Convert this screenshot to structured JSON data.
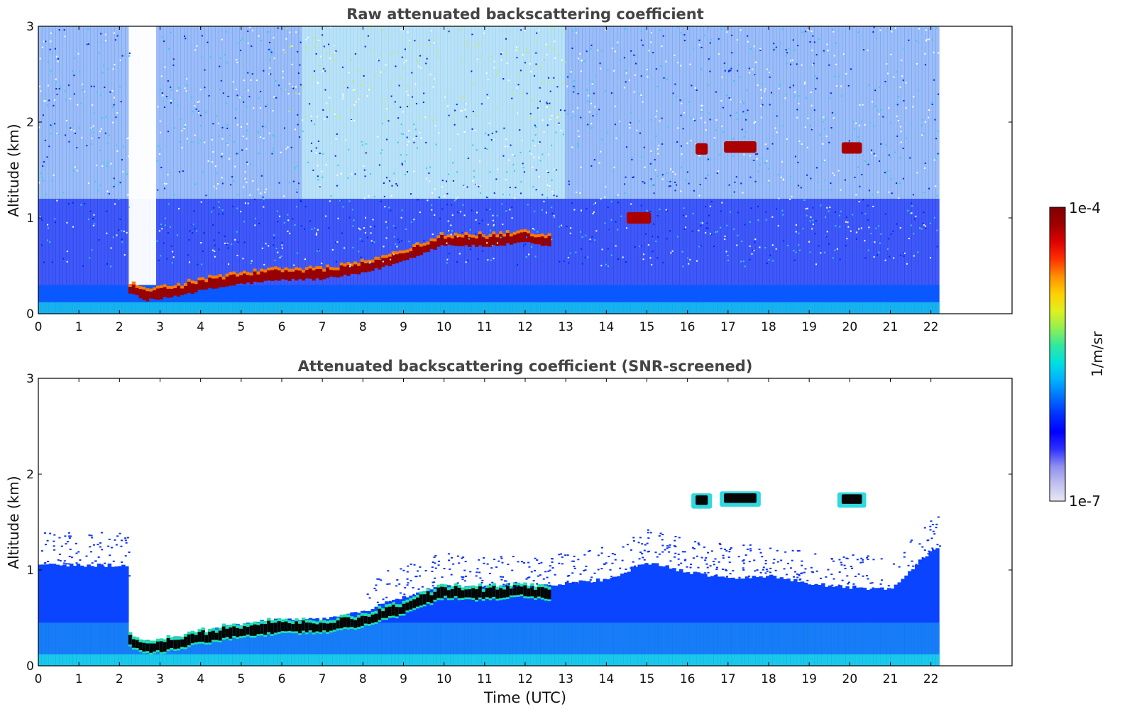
{
  "chart_data": [
    {
      "type": "heatmap",
      "title": "Raw attenuated backscattering coefficient",
      "xlabel": "",
      "ylabel": "Altitude (km)",
      "xlim": [
        0,
        24
      ],
      "ylim": [
        0,
        3
      ],
      "x_ticks": [
        "0",
        "1",
        "2",
        "3",
        "4",
        "5",
        "6",
        "7",
        "8",
        "9",
        "10",
        "11",
        "12",
        "13",
        "14",
        "15",
        "16",
        "17",
        "18",
        "19",
        "20",
        "21",
        "22"
      ],
      "y_ticks": [
        "0",
        "1",
        "2",
        "3"
      ],
      "data_extent_hours": [
        0,
        22.2
      ],
      "cloud_base_km": [
        {
          "t": 0,
          "h": null
        },
        {
          "t": 2.2,
          "h": 0.24
        },
        {
          "t": 2.6,
          "h": 0.14
        },
        {
          "t": 3,
          "h": 0.15
        },
        {
          "t": 4,
          "h": 0.24
        },
        {
          "t": 5,
          "h": 0.31
        },
        {
          "t": 6,
          "h": 0.35
        },
        {
          "t": 7,
          "h": 0.36
        },
        {
          "t": 8,
          "h": 0.42
        },
        {
          "t": 9,
          "h": 0.55
        },
        {
          "t": 10,
          "h": 0.72
        },
        {
          "t": 11,
          "h": 0.7
        },
        {
          "t": 12,
          "h": 0.74
        },
        {
          "t": 12.5,
          "h": 0.7
        }
      ],
      "elevated_clouds": [
        {
          "t_start": 14.5,
          "t_end": 15.1,
          "h": 1.0
        },
        {
          "t_start": 16.2,
          "t_end": 16.5,
          "h": 1.72
        },
        {
          "t_start": 16.9,
          "t_end": 17.7,
          "h": 1.74
        },
        {
          "t_start": 19.8,
          "t_end": 20.3,
          "h": 1.73
        }
      ]
    },
    {
      "type": "heatmap",
      "title": "Attenuated backscattering coefficient (SNR-screened)",
      "xlabel": "Time (UTC)",
      "ylabel": "Altitude (km)",
      "xlim": [
        0,
        24
      ],
      "ylim": [
        0,
        3
      ],
      "x_ticks": [
        "0",
        "1",
        "2",
        "3",
        "4",
        "5",
        "6",
        "7",
        "8",
        "9",
        "10",
        "11",
        "12",
        "13",
        "14",
        "15",
        "16",
        "17",
        "18",
        "19",
        "20",
        "21",
        "22"
      ],
      "y_ticks": [
        "0",
        "1",
        "2",
        "3"
      ],
      "boundary_layer_top_km": [
        {
          "t": 0,
          "h": 1.05
        },
        {
          "t": 2.2,
          "h": 1.05
        },
        {
          "t": 2.25,
          "h": 0.28
        },
        {
          "t": 3,
          "h": 0.26
        },
        {
          "t": 4,
          "h": 0.34
        },
        {
          "t": 5,
          "h": 0.44
        },
        {
          "t": 6,
          "h": 0.48
        },
        {
          "t": 7,
          "h": 0.48
        },
        {
          "t": 8,
          "h": 0.56
        },
        {
          "t": 9,
          "h": 0.72
        },
        {
          "t": 10,
          "h": 0.84
        },
        {
          "t": 11,
          "h": 0.82
        },
        {
          "t": 12,
          "h": 0.82
        },
        {
          "t": 13,
          "h": 0.86
        },
        {
          "t": 14,
          "h": 0.9
        },
        {
          "t": 15,
          "h": 1.08
        },
        {
          "t": 16,
          "h": 0.98
        },
        {
          "t": 17,
          "h": 0.92
        },
        {
          "t": 18,
          "h": 0.94
        },
        {
          "t": 19,
          "h": 0.86
        },
        {
          "t": 20,
          "h": 0.82
        },
        {
          "t": 21,
          "h": 0.8
        },
        {
          "t": 22,
          "h": 1.2
        },
        {
          "t": 22.2,
          "h": 1.22
        }
      ]
    }
  ],
  "colorbar": {
    "top_label": "1e-4",
    "bottom_label": "1e-7",
    "unit_label": "1/m/sr",
    "colors": [
      "#e8e8f4",
      "#c0c0f0",
      "#9090f0",
      "#3030ff",
      "#0000ff",
      "#0030ff",
      "#0070ff",
      "#00b0ff",
      "#00e0e0",
      "#30e8a0",
      "#90f050",
      "#e0f020",
      "#ffd000",
      "#ff9000",
      "#ff3000",
      "#e00000",
      "#a00000",
      "#800000"
    ]
  }
}
